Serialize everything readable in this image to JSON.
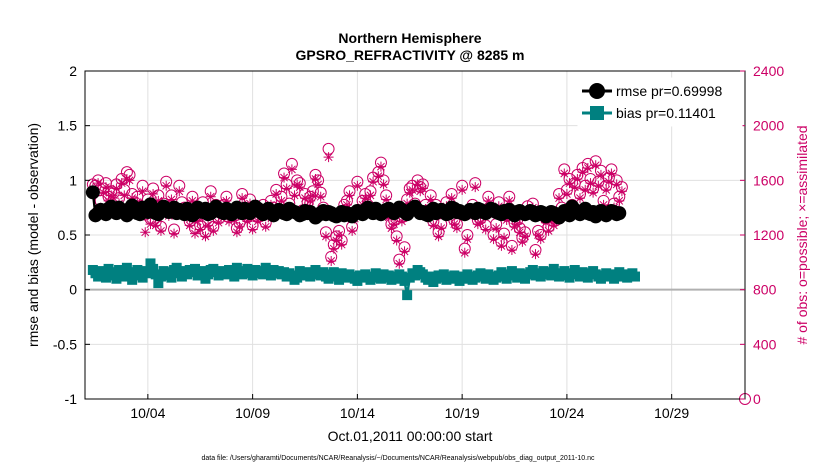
{
  "chart_data": {
    "type": "line",
    "title_line1": "Northern Hemisphere",
    "title_line2": "GPSRO_REFRACTIVITY @ 8285 m",
    "xlabel": "Oct.01,2011 00:00:00 start",
    "ylabel_left": "rmse and bias (model - observation)",
    "ylabel_right": "# of obs: o=possible; ×=assimilated",
    "footer": "data file: /Users/gharamti/Documents/NCAR/Reanalysis/~/Documents/NCAR/Reanalysis/webpub/obs_diag_output_2011-10.nc",
    "x_range": [
      1,
      32.5
    ],
    "ylim_left": [
      -1,
      2
    ],
    "ylim_right": [
      0,
      2400
    ],
    "x_ticks": [
      4,
      9,
      14,
      19,
      24,
      29
    ],
    "x_tick_labels": [
      "10/04",
      "10/09",
      "10/14",
      "10/19",
      "10/24",
      "10/29"
    ],
    "y_ticks_left": [
      -1,
      -0.5,
      0,
      0.5,
      1,
      1.5,
      2
    ],
    "y_tick_labels_left": [
      "-1",
      "-0.5",
      "0",
      "0.5",
      "1",
      "1.5",
      "2"
    ],
    "y_ticks_right": [
      0,
      400,
      800,
      1200,
      1600,
      2000,
      2400
    ],
    "y_tick_labels_right": [
      "0",
      "400",
      "800",
      "1200",
      "1600",
      "2000",
      "2400"
    ],
    "legend": [
      {
        "name": "rmse pr=0.69998",
        "color": "#000000",
        "marker": "circle"
      },
      {
        "name": "bias pr=0.11401",
        "color": "#008080",
        "marker": "square"
      }
    ],
    "legend_position": "top-right",
    "colors": {
      "rmse": "#000000",
      "bias": "#008080",
      "obs": "#cc0066",
      "grid": "#e0e0e0",
      "zero_line": "#b0b0b0"
    },
    "time_start_day": 1.375,
    "time_step_days": 0.125,
    "series": [
      {
        "name": "rmse",
        "values": [
          0.89,
          0.68,
          0.7,
          0.73,
          0.71,
          0.69,
          0.74,
          0.76,
          0.72,
          0.7,
          0.75,
          0.73,
          0.71,
          0.68,
          0.74,
          0.77,
          0.73,
          0.7,
          0.69,
          0.75,
          0.72,
          0.71,
          0.78,
          0.74,
          0.7,
          0.69,
          0.73,
          0.76,
          0.74,
          0.71,
          0.72,
          0.75,
          0.7,
          0.73,
          0.71,
          0.69,
          0.74,
          0.72,
          0.68,
          0.7,
          0.75,
          0.73,
          0.71,
          0.74,
          0.69,
          0.7,
          0.72,
          0.76,
          0.73,
          0.71,
          0.7,
          0.74,
          0.72,
          0.69,
          0.73,
          0.75,
          0.71,
          0.7,
          0.74,
          0.72,
          0.7,
          0.73,
          0.76,
          0.74,
          0.71,
          0.69,
          0.72,
          0.74,
          0.7,
          0.68,
          0.71,
          0.73,
          0.72,
          0.7,
          0.69,
          0.74,
          0.72,
          0.71,
          0.7,
          0.68,
          0.69,
          0.72,
          0.7,
          0.71,
          0.69,
          0.66,
          0.68,
          0.7,
          0.72,
          0.69,
          0.71,
          0.7,
          0.68,
          0.67,
          0.69,
          0.71,
          0.68,
          0.7,
          0.69,
          0.67,
          0.7,
          0.72,
          0.71,
          0.69,
          0.73,
          0.75,
          0.72,
          0.7,
          0.74,
          0.72,
          0.69,
          0.71,
          0.73,
          0.74,
          0.72,
          0.7,
          0.72,
          0.75,
          0.73,
          0.71,
          0.69,
          0.72,
          0.74,
          0.76,
          0.73,
          0.7,
          0.71,
          0.69,
          0.68,
          0.72,
          0.74,
          0.7,
          0.72,
          0.73,
          0.71,
          0.69,
          0.7,
          0.75,
          0.74,
          0.71,
          0.72,
          0.7,
          0.69,
          0.71,
          0.73,
          0.72,
          0.7,
          0.74,
          0.73,
          0.71,
          0.7,
          0.72,
          0.74,
          0.73,
          0.71,
          0.7,
          0.69,
          0.72,
          0.71,
          0.73,
          0.7,
          0.68,
          0.71,
          0.72,
          0.7,
          0.69,
          0.7,
          0.72,
          0.71,
          0.68,
          0.69,
          0.71,
          0.7,
          0.67,
          0.69,
          0.71,
          0.7,
          0.68,
          0.66,
          0.69,
          0.72,
          0.7,
          0.68,
          0.76,
          0.73,
          0.71,
          0.69,
          0.72,
          0.74,
          0.7,
          0.69,
          0.71,
          0.67,
          0.69,
          0.72,
          0.7,
          0.68,
          0.7,
          0.72,
          0.71,
          0.69,
          0.7
        ]
      },
      {
        "name": "bias",
        "values": [
          0.18,
          0.15,
          0.12,
          0.17,
          0.14,
          0.11,
          0.19,
          0.16,
          0.13,
          0.1,
          0.18,
          0.15,
          0.12,
          0.2,
          0.16,
          0.09,
          0.14,
          0.18,
          0.13,
          0.11,
          0.17,
          0.15,
          0.24,
          0.19,
          0.14,
          0.06,
          0.12,
          0.17,
          0.16,
          0.13,
          0.11,
          0.18,
          0.2,
          0.15,
          0.12,
          0.17,
          0.14,
          0.18,
          0.16,
          0.19,
          0.13,
          0.15,
          0.17,
          0.1,
          0.14,
          0.18,
          0.19,
          0.16,
          0.13,
          0.17,
          0.15,
          0.14,
          0.18,
          0.16,
          0.12,
          0.2,
          0.17,
          0.14,
          0.15,
          0.19,
          0.16,
          0.13,
          0.18,
          0.15,
          0.17,
          0.14,
          0.2,
          0.16,
          0.13,
          0.18,
          0.15,
          0.17,
          0.14,
          0.16,
          0.12,
          0.15,
          0.13,
          0.09,
          0.11,
          0.17,
          0.14,
          0.13,
          0.16,
          0.12,
          0.15,
          0.18,
          0.14,
          0.13,
          0.16,
          0.12,
          0.1,
          0.14,
          0.16,
          0.12,
          0.09,
          0.15,
          0.13,
          0.11,
          0.14,
          0.12,
          0.1,
          0.08,
          0.13,
          0.11,
          0.14,
          0.12,
          0.09,
          0.11,
          0.15,
          0.12,
          0.1,
          0.14,
          0.11,
          0.13,
          0.09,
          0.12,
          0.1,
          0.14,
          0.12,
          0.08,
          -0.05,
          0.11,
          0.15,
          0.13,
          0.18,
          0.16,
          0.14,
          0.11,
          0.09,
          0.12,
          0.07,
          0.1,
          0.13,
          0.11,
          0.14,
          0.09,
          0.12,
          0.1,
          0.13,
          0.11,
          0.08,
          0.12,
          0.1,
          0.14,
          0.12,
          0.09,
          0.11,
          0.13,
          0.15,
          0.12,
          0.1,
          0.14,
          0.12,
          0.09,
          0.11,
          0.13,
          0.16,
          0.12,
          0.1,
          0.14,
          0.17,
          0.13,
          0.11,
          0.15,
          0.12,
          0.1,
          0.14,
          0.16,
          0.18,
          0.13,
          0.15,
          0.12,
          0.17,
          0.14,
          0.16,
          0.13,
          0.19,
          0.15,
          0.12,
          0.14,
          0.17,
          0.13,
          0.11,
          0.15,
          0.18,
          0.14,
          0.12,
          0.16,
          0.13,
          0.11,
          0.15,
          0.17,
          0.14,
          0.12,
          0.1,
          0.13,
          0.15,
          0.12,
          0.14,
          0.1,
          0.13,
          0.16,
          0.12,
          0.14,
          0.11,
          0.13,
          0.15,
          0.12
        ]
      }
    ],
    "obs_possible": [
      1570,
      1560,
      1600,
      1450,
      1540,
      1580,
      1480,
      1520,
      1510,
      1570,
      1470,
      1610,
      1530,
      1660,
      1640,
      1500,
      1440,
      1480,
      1410,
      1560,
      1350,
      1460,
      1320,
      1540,
      1300,
      1490,
      1260,
      1430,
      1590,
      1380,
      1490,
      1240,
      1380,
      1560,
      1440,
      1400,
      1360,
      1300,
      1480,
      1250,
      1340,
      1270,
      1440,
      1220,
      1300,
      1520,
      1260,
      1420,
      1320,
      1360,
      1420,
      1480,
      1330,
      1380,
      1340,
      1250,
      1290,
      1500,
      1400,
      1330,
      1460,
      1270,
      1390,
      1330,
      1370,
      1420,
      1290,
      1360,
      1450,
      1400,
      1530,
      1380,
      1480,
      1650,
      1570,
      1430,
      1720,
      1520,
      1600,
      1580,
      1380,
      1500,
      1440,
      1480,
      1520,
      1640,
      1600,
      1510,
      1400,
      1220,
      1830,
      1040,
      1130,
      1190,
      1230,
      1160,
      1420,
      1450,
      1520,
      1260,
      1350,
      1590,
      1380,
      1450,
      1500,
      1420,
      1520,
      1620,
      1380,
      1660,
      1730,
      1600,
      1490,
      1360,
      1280,
      1310,
      1190,
      1020,
      1330,
      1110,
      1460,
      1540,
      1560,
      1430,
      1600,
      1550,
      1570,
      1420,
      1380,
      1490,
      1300,
      1420,
      1220,
      1280,
      1380,
      1440,
      1360,
      1500,
      1310,
      1280,
      1380,
      1560,
      1100,
      1200,
      1380,
      1420,
      1580,
      1310,
      1320,
      1380,
      1270,
      1480,
      1390,
      1200,
      1280,
      1440,
      1150,
      1210,
      1340,
      1480,
      1120,
      1290,
      1310,
      1250,
      1180,
      1220,
      1410,
      1380,
      1430,
      1090,
      1230,
      1200,
      1360,
      1320,
      1260,
      1340,
      1300,
      1330,
      1500,
      1400,
      1680,
      1530,
      1610,
      1420,
      1580,
      1640,
      1500,
      1690,
      1560,
      1720,
      1610,
      1540,
      1740,
      1590,
      1670,
      1450,
      1560,
      1620,
      1680,
      1430,
      1600,
      1480,
      1550
    ],
    "obs_assimilated": [
      1540,
      1520,
      1580,
      1400,
      1510,
      1550,
      1450,
      1490,
      1470,
      1540,
      1430,
      1580,
      1490,
      1610,
      1600,
      1470,
      1400,
      1440,
      1360,
      1520,
      1220,
      1420,
      1280,
      1500,
      1270,
      1450,
      1230,
      1400,
      1560,
      1340,
      1460,
      1210,
      1350,
      1520,
      1400,
      1370,
      1330,
      1270,
      1450,
      1210,
      1300,
      1240,
      1400,
      1190,
      1270,
      1480,
      1230,
      1390,
      1290,
      1330,
      1390,
      1450,
      1300,
      1350,
      1310,
      1220,
      1260,
      1470,
      1370,
      1300,
      1430,
      1240,
      1360,
      1300,
      1340,
      1390,
      1260,
      1330,
      1420,
      1370,
      1500,
      1350,
      1450,
      1620,
      1540,
      1400,
      1680,
      1490,
      1570,
      1550,
      1350,
      1470,
      1410,
      1450,
      1490,
      1610,
      1570,
      1480,
      1370,
      1190,
      1770,
      1010,
      1100,
      1160,
      1200,
      1130,
      1390,
      1420,
      1490,
      1230,
      1320,
      1560,
      1350,
      1420,
      1470,
      1390,
      1490,
      1590,
      1350,
      1630,
      1700,
      1570,
      1460,
      1330,
      1250,
      1280,
      1160,
      990,
      1300,
      1080,
      1430,
      1510,
      1530,
      1400,
      1570,
      1520,
      1540,
      1390,
      1350,
      1460,
      1270,
      1390,
      1190,
      1250,
      1350,
      1410,
      1330,
      1470,
      1280,
      1250,
      1350,
      1530,
      1070,
      1170,
      1350,
      1390,
      1550,
      1280,
      1290,
      1350,
      1240,
      1450,
      1360,
      1170,
      1250,
      1410,
      1120,
      1180,
      1310,
      1450,
      1090,
      1260,
      1280,
      1220,
      1150,
      1190,
      1380,
      1350,
      1400,
      1060,
      1200,
      1170,
      1330,
      1290,
      1230,
      1310,
      1270,
      1300,
      1470,
      1370,
      1650,
      1500,
      1580,
      1390,
      1550,
      1610,
      1470,
      1660,
      1530,
      1690,
      1580,
      1510,
      1710,
      1560,
      1640,
      1420,
      1530,
      1590,
      1650,
      1400,
      1570,
      1450,
      1520
    ]
  }
}
